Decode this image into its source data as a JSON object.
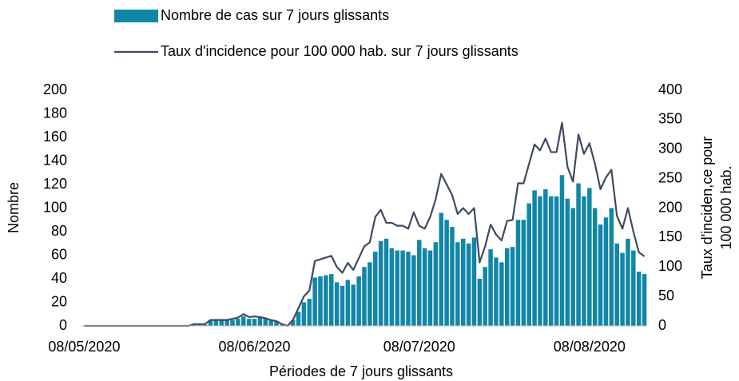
{
  "chart_data": {
    "type": "bar",
    "xlabel": "Périodes de 7 jours glissants",
    "ylabel": "Nombre",
    "y2label": [
      "Taux d'inciden,ce pour",
      "100 000 hab."
    ],
    "categories": [
      "08/05/2020",
      null,
      null,
      null,
      null,
      null,
      null,
      null,
      null,
      null,
      null,
      null,
      null,
      null,
      null,
      null,
      null,
      null,
      null,
      null,
      null,
      null,
      null,
      null,
      null,
      null,
      null,
      null,
      null,
      null,
      null,
      "08/06/2020",
      null,
      null,
      null,
      null,
      null,
      null,
      null,
      null,
      null,
      null,
      null,
      null,
      null,
      null,
      null,
      null,
      null,
      null,
      null,
      null,
      null,
      null,
      null,
      null,
      null,
      null,
      null,
      null,
      null,
      "08/07/2020",
      null,
      null,
      null,
      null,
      null,
      null,
      null,
      null,
      null,
      null,
      null,
      null,
      null,
      null,
      null,
      null,
      null,
      null,
      null,
      null,
      null,
      null,
      null,
      null,
      null,
      null,
      null,
      null,
      null,
      null,
      "08/08/2020",
      null,
      null,
      null,
      null,
      null,
      null,
      null,
      null,
      null,
      null
    ],
    "ylim": [
      0,
      200
    ],
    "yticks": [
      0,
      20,
      40,
      60,
      80,
      100,
      120,
      140,
      160,
      180,
      200
    ],
    "y2lim": [
      0,
      400
    ],
    "y2ticks": [
      0,
      50,
      100,
      150,
      200,
      250,
      300,
      350,
      400
    ],
    "series": [
      {
        "name": "Nombre de cas sur 7 jours glissants",
        "type": "bar",
        "color": "#1186a9",
        "values": [
          0,
          0,
          0,
          0,
          0,
          0,
          0,
          0,
          0,
          0,
          0,
          0,
          0,
          0,
          0,
          0,
          0,
          0,
          0,
          0,
          1,
          1,
          1,
          5,
          5,
          5,
          5,
          5,
          6,
          8,
          6,
          6,
          7,
          6,
          5,
          4,
          1,
          0,
          5,
          12,
          20,
          23,
          41,
          42,
          43,
          44,
          37,
          34,
          39,
          35,
          42,
          50,
          54,
          63,
          72,
          74,
          66,
          64,
          64,
          63,
          60,
          73,
          66,
          64,
          71,
          96,
          90,
          84,
          71,
          74,
          70,
          75,
          40,
          50,
          65,
          58,
          54,
          66,
          67,
          90,
          90,
          104,
          115,
          110,
          116,
          110,
          110,
          128,
          108,
          100,
          121,
          110,
          117,
          100,
          86,
          92,
          100,
          70,
          62,
          74,
          64,
          46,
          44
        ]
      },
      {
        "name": "Taux d'incidence pour 100 000 hab. sur 7 jours glissants",
        "type": "line",
        "axis": "y2",
        "color": "#3f4a5f",
        "values": [
          0,
          0,
          0,
          0,
          0,
          0,
          0,
          0,
          0,
          0,
          0,
          0,
          0,
          0,
          0,
          0,
          0,
          0,
          0,
          0,
          3,
          3,
          3,
          10,
          10,
          10,
          10,
          12,
          14,
          20,
          15,
          16,
          15,
          13,
          10,
          8,
          3,
          0,
          10,
          30,
          50,
          60,
          110,
          113,
          116,
          119,
          100,
          90,
          107,
          95,
          115,
          135,
          142,
          185,
          197,
          175,
          175,
          170,
          170,
          165,
          193,
          170,
          165,
          185,
          215,
          258,
          240,
          222,
          190,
          200,
          190,
          200,
          108,
          135,
          172,
          155,
          145,
          178,
          180,
          242,
          242,
          275,
          308,
          298,
          318,
          295,
          295,
          345,
          270,
          245,
          325,
          292,
          310,
          275,
          232,
          252,
          265,
          187,
          165,
          200,
          160,
          125,
          118
        ]
      }
    ]
  }
}
